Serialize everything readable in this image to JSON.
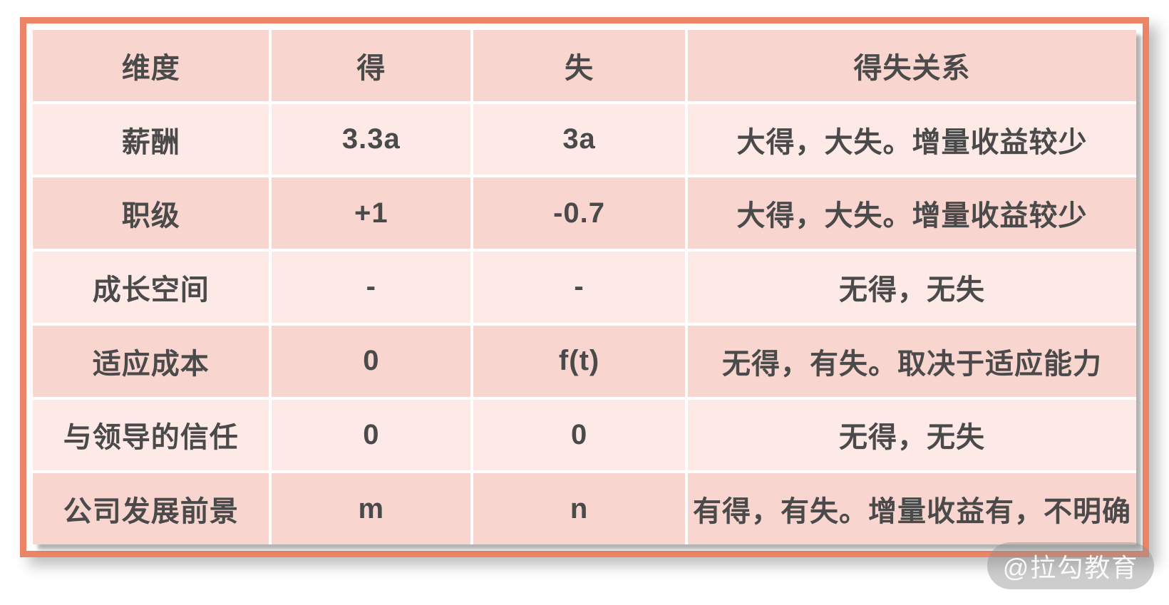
{
  "chart_data": {
    "type": "table",
    "columns": [
      "维度",
      "得",
      "失",
      "得失关系"
    ],
    "rows": [
      {
        "dimension": "薪酬",
        "gain": "3.3a",
        "loss": "3a",
        "relation": "大得，大失。增量收益较少"
      },
      {
        "dimension": "职级",
        "gain": "+1",
        "loss": "-0.7",
        "relation": "大得，大失。增量收益较少"
      },
      {
        "dimension": "成长空间",
        "gain": "-",
        "loss": "-",
        "relation": "无得，无失"
      },
      {
        "dimension": "适应成本",
        "gain": "0",
        "loss": "f(t)",
        "relation": "无得，有失。取决于适应能力"
      },
      {
        "dimension": "与领导的信任",
        "gain": "0",
        "loss": "0",
        "relation": "无得，无失"
      },
      {
        "dimension": "公司发展前景",
        "gain": "m",
        "loss": "n",
        "relation": "有得，有失。增量收益有，不明确"
      }
    ],
    "layout": {
      "header_row_shaded": true,
      "alternating_rows": true
    }
  },
  "watermark": {
    "text": "@拉勾教育"
  },
  "colors": {
    "frame_border": "#ec8467",
    "row_dark": "#f8d5cf",
    "row_light": "#fdeae7",
    "cell_text": "#4a4a4a",
    "separator": "#ffffff",
    "watermark_bg": "rgba(145,145,145,0.45)",
    "watermark_text": "rgba(255,255,255,0.9)"
  }
}
